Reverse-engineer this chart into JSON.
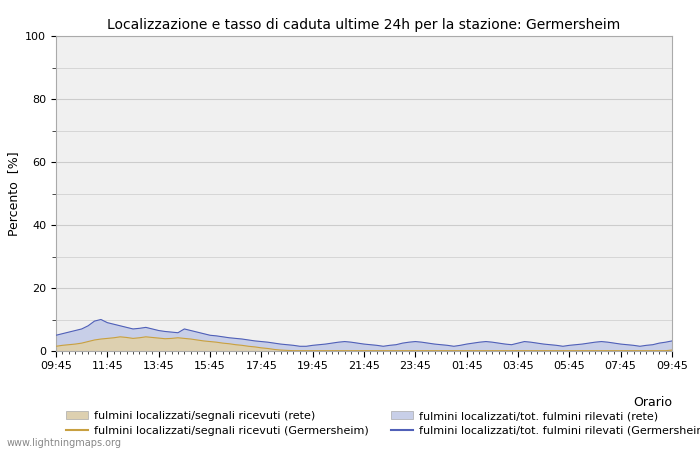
{
  "title": "Localizzazione e tasso di caduta ultime 24h per la stazione: Germersheim",
  "ylabel": "Percento  [%]",
  "xlabel": "Orario",
  "ylim": [
    0,
    100
  ],
  "yticks": [
    0,
    20,
    40,
    60,
    80,
    100
  ],
  "ytick_minor": [
    10,
    30,
    50,
    70,
    90
  ],
  "xtick_labels": [
    "09:45",
    "11:45",
    "13:45",
    "15:45",
    "17:45",
    "19:45",
    "21:45",
    "23:45",
    "01:45",
    "03:45",
    "05:45",
    "07:45",
    "09:45"
  ],
  "background_color": "#ffffff",
  "plot_bg_color": "#f0f0f0",
  "grid_color": "#cccccc",
  "fill_rete_color": "#ddd0b0",
  "fill_germersheim_color": "#c8cfe8",
  "line_rete_color": "#c8a040",
  "line_germersheim_color": "#5060b8",
  "watermark": "www.lightningmaps.org",
  "legend_labels": [
    "fulmini localizzati/segnali ricevuti (rete)",
    "fulmini localizzati/segnali ricevuti (Germersheim)",
    "fulmini localizzati/tot. fulmini rilevati (rete)",
    "fulmini localizzati/tot. fulmini rilevati (Germersheim)"
  ],
  "n_points": 97,
  "rete_signal_values": [
    1.5,
    1.8,
    2.0,
    2.2,
    2.5,
    3.0,
    3.5,
    3.8,
    4.0,
    4.2,
    4.5,
    4.3,
    4.0,
    4.2,
    4.5,
    4.3,
    4.1,
    3.9,
    4.0,
    4.2,
    4.0,
    3.8,
    3.5,
    3.2,
    3.0,
    2.8,
    2.5,
    2.3,
    2.0,
    1.8,
    1.5,
    1.3,
    1.0,
    0.8,
    0.5,
    0.3,
    0.2,
    0.1,
    0.1,
    0.1,
    0.1,
    0.1,
    0.1,
    0.1,
    0.1,
    0.1,
    0.1,
    0.1,
    0.1,
    0.1,
    0.1,
    0.1,
    0.1,
    0.1,
    0.1,
    0.1,
    0.1,
    0.1,
    0.1,
    0.1,
    0.1,
    0.1,
    0.1,
    0.1,
    0.1,
    0.1,
    0.1,
    0.1,
    0.1,
    0.1,
    0.1,
    0.1,
    0.1,
    0.1,
    0.1,
    0.1,
    0.1,
    0.1,
    0.1,
    0.1,
    0.1,
    0.1,
    0.1,
    0.1,
    0.1,
    0.1,
    0.1,
    0.1,
    0.1,
    0.1,
    0.1,
    0.1,
    0.1,
    0.1,
    0.1,
    0.1,
    0.3
  ],
  "germersheim_tot_values": [
    5.0,
    5.5,
    6.0,
    6.5,
    7.0,
    8.0,
    9.5,
    10.0,
    9.0,
    8.5,
    8.0,
    7.5,
    7.0,
    7.2,
    7.5,
    7.0,
    6.5,
    6.2,
    6.0,
    5.8,
    7.0,
    6.5,
    6.0,
    5.5,
    5.0,
    4.8,
    4.5,
    4.2,
    4.0,
    3.8,
    3.5,
    3.2,
    3.0,
    2.8,
    2.5,
    2.2,
    2.0,
    1.8,
    1.5,
    1.5,
    1.8,
    2.0,
    2.2,
    2.5,
    2.8,
    3.0,
    2.8,
    2.5,
    2.2,
    2.0,
    1.8,
    1.5,
    1.8,
    2.0,
    2.5,
    2.8,
    3.0,
    2.8,
    2.5,
    2.2,
    2.0,
    1.8,
    1.5,
    1.8,
    2.2,
    2.5,
    2.8,
    3.0,
    2.8,
    2.5,
    2.2,
    2.0,
    2.5,
    3.0,
    2.8,
    2.5,
    2.2,
    2.0,
    1.8,
    1.5,
    1.8,
    2.0,
    2.2,
    2.5,
    2.8,
    3.0,
    2.8,
    2.5,
    2.2,
    2.0,
    1.8,
    1.5,
    1.8,
    2.0,
    2.5,
    2.8,
    3.2
  ]
}
